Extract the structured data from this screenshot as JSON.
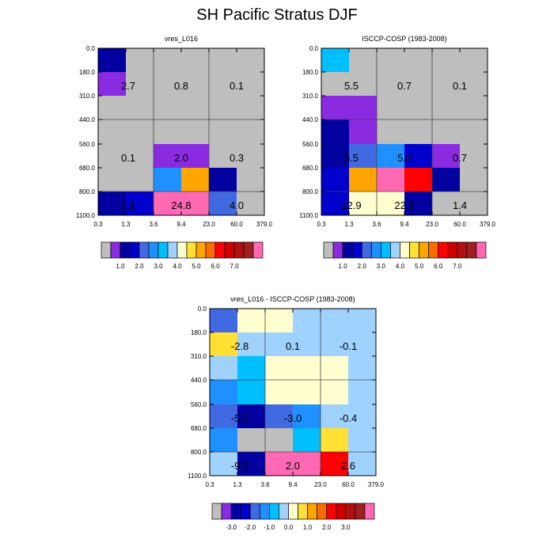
{
  "title": "SH Pacific Stratus DJF",
  "palette": [
    "#bebebe",
    "#8a2be2",
    "#0000a0",
    "#0000cd",
    "#4169e1",
    "#1e90ff",
    "#00bfff",
    "#a0d2ff",
    "#ffffd0",
    "#ffe033",
    "#ffa500",
    "#ff6a00",
    "#ff0000",
    "#d00000",
    "#b01010",
    "#a02020",
    "#ff69b4"
  ],
  "chart_data": [
    {
      "type": "heatmap",
      "title": "vres_L016",
      "x_ticks": [
        "0.3",
        "1.3",
        "3.6",
        "9.4",
        "23.0",
        "60.0",
        "379.0"
      ],
      "y_ticks": [
        "0.0",
        "180.0",
        "310.0",
        "440.0",
        "560.0",
        "680.0",
        "800.0",
        "1100.0"
      ],
      "cells": [
        [
          2,
          0,
          0,
          0,
          0,
          0
        ],
        [
          1,
          0,
          0,
          0,
          0,
          0
        ],
        [
          0,
          0,
          0,
          0,
          0,
          0
        ],
        [
          0,
          0,
          0,
          0,
          0,
          0
        ],
        [
          0,
          0,
          1,
          1,
          0,
          0
        ],
        [
          0,
          0,
          5,
          10,
          2,
          0
        ],
        [
          2,
          3,
          16,
          16,
          4,
          0
        ]
      ],
      "labels": [
        {
          "text": "2.7",
          "row": 1,
          "col": 1
        },
        {
          "text": "0.8",
          "row": 1,
          "col": 3
        },
        {
          "text": "0.1",
          "row": 1,
          "col": 5
        },
        {
          "text": "0.1",
          "row": 4,
          "col": 1
        },
        {
          "text": "2.0",
          "row": 4,
          "col": 3
        },
        {
          "text": "0.3",
          "row": 4,
          "col": 5
        },
        {
          "text": "3.1",
          "row": 6,
          "col": 1
        },
        {
          "text": "24.8",
          "row": 6,
          "col": 3
        },
        {
          "text": "4.0",
          "row": 6,
          "col": 5
        }
      ],
      "colorbar": {
        "ticks": [
          "1.0",
          "2.0",
          "3.0",
          "4.0",
          "5.0",
          "6.0",
          "7.0"
        ],
        "colors": [
          0,
          1,
          2,
          3,
          4,
          5,
          6,
          7,
          8,
          9,
          10,
          11,
          12,
          13,
          14,
          15,
          16
        ]
      }
    },
    {
      "type": "heatmap",
      "title": "ISCCP-COSP (1983-2008)",
      "x_ticks": [
        "0.3",
        "1.3",
        "3.6",
        "9.4",
        "23.0",
        "60.0",
        "379.0"
      ],
      "y_ticks": [
        "0.0",
        "180.0",
        "310.0",
        "440.0",
        "560.0",
        "680.0",
        "800.0",
        "1100.0"
      ],
      "cells": [
        [
          6,
          0,
          0,
          0,
          0,
          0
        ],
        [
          0,
          0,
          0,
          0,
          0,
          0
        ],
        [
          1,
          1,
          0,
          0,
          0,
          0
        ],
        [
          2,
          1,
          0,
          0,
          0,
          0
        ],
        [
          2,
          4,
          5,
          3,
          1,
          0
        ],
        [
          3,
          10,
          16,
          12,
          2,
          0
        ],
        [
          3,
          8,
          8,
          2,
          0,
          0
        ]
      ],
      "labels": [
        {
          "text": "5.5",
          "row": 1,
          "col": 1
        },
        {
          "text": "0.7",
          "row": 1,
          "col": 3
        },
        {
          "text": "0.1",
          "row": 1,
          "col": 5
        },
        {
          "text": "5.5",
          "row": 4,
          "col": 1
        },
        {
          "text": "5.0",
          "row": 4,
          "col": 3
        },
        {
          "text": "0.7",
          "row": 4,
          "col": 5
        },
        {
          "text": "12.9",
          "row": 6,
          "col": 1
        },
        {
          "text": "22.8",
          "row": 6,
          "col": 3
        },
        {
          "text": "1.4",
          "row": 6,
          "col": 5
        }
      ],
      "colorbar": {
        "ticks": [
          "1.0",
          "2.0",
          "3.0",
          "4.0",
          "5.0",
          "6.0",
          "7.0"
        ],
        "colors": [
          0,
          1,
          2,
          3,
          4,
          5,
          6,
          7,
          8,
          9,
          10,
          11,
          12,
          13,
          14,
          15,
          16
        ]
      }
    },
    {
      "type": "heatmap",
      "title": "vres_L016 - ISCCP-COSP (1983-2008)",
      "x_ticks": [
        "0.3",
        "1.3",
        "3.6",
        "9.4",
        "23.0",
        "60.0",
        "379.0"
      ],
      "y_ticks": [
        "0.0",
        "180.0",
        "310.0",
        "440.0",
        "560.0",
        "680.0",
        "800.0",
        "1100.0"
      ],
      "cells": [
        [
          4,
          8,
          8,
          7,
          7,
          7
        ],
        [
          9,
          7,
          7,
          7,
          7,
          7
        ],
        [
          7,
          6,
          8,
          8,
          8,
          7
        ],
        [
          5,
          6,
          8,
          8,
          8,
          7
        ],
        [
          4,
          2,
          4,
          5,
          7,
          7
        ],
        [
          5,
          0,
          0,
          6,
          9,
          7
        ],
        [
          7,
          2,
          16,
          16,
          12,
          7
        ]
      ],
      "labels": [
        {
          "text": "-2.8",
          "row": 1,
          "col": 1
        },
        {
          "text": "0.1",
          "row": 1,
          "col": 3
        },
        {
          "text": "-0.1",
          "row": 1,
          "col": 5
        },
        {
          "text": "-5.5",
          "row": 4,
          "col": 1
        },
        {
          "text": "-3.0",
          "row": 4,
          "col": 3
        },
        {
          "text": "-0.4",
          "row": 4,
          "col": 5
        },
        {
          "text": "-9.8",
          "row": 6,
          "col": 1
        },
        {
          "text": "2.0",
          "row": 6,
          "col": 3
        },
        {
          "text": "2.6",
          "row": 6,
          "col": 5
        }
      ],
      "colorbar": {
        "ticks": [
          "-3.0",
          "-2.0",
          "-1.0",
          "0.0",
          "1.0",
          "2.0",
          "3.0"
        ],
        "colors": [
          0,
          1,
          2,
          3,
          4,
          5,
          6,
          7,
          8,
          9,
          10,
          11,
          12,
          13,
          14,
          15,
          16
        ]
      }
    }
  ]
}
